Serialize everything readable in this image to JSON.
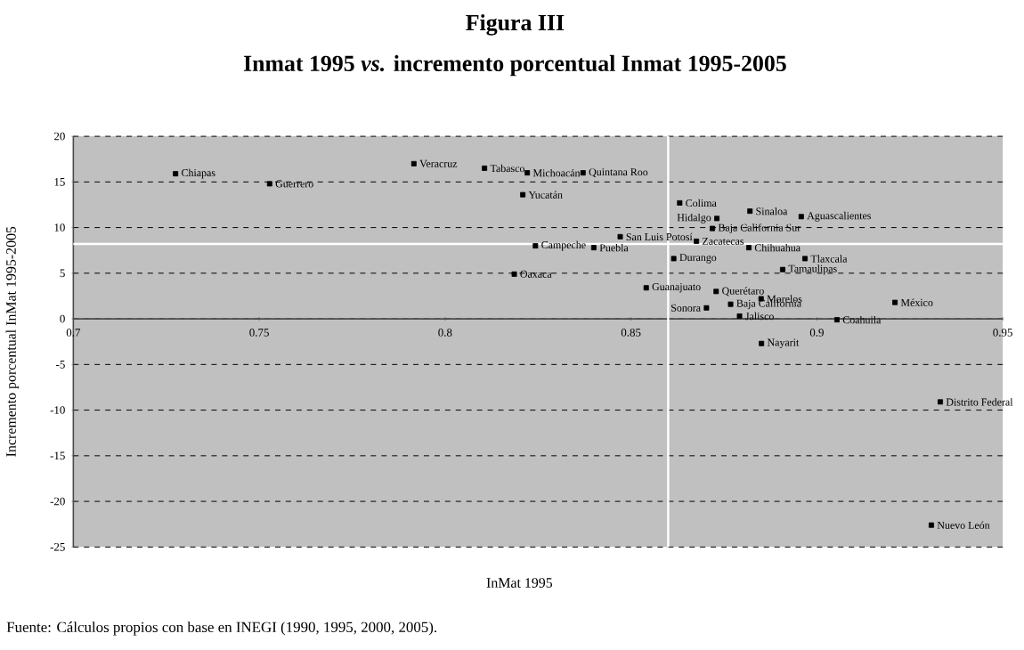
{
  "chart_data": {
    "type": "scatter",
    "title": "Figura III",
    "subtitle": "Inmat 1995 *vs.* incremento porcentual Inmat 1995-2005",
    "xlabel": "InMat 1995",
    "ylabel": "Incremento porcentual InMat 1995-2005",
    "xlim": [
      0.7,
      0.95
    ],
    "xticks": [
      0.7,
      0.75,
      0.8,
      0.85,
      0.9,
      0.95
    ],
    "ylim": [
      -25,
      20
    ],
    "yticks": [
      -25,
      -20,
      -15,
      -10,
      -5,
      0,
      5,
      10,
      15,
      20
    ],
    "grid": "y",
    "marker": "square",
    "ref_lines": [
      {
        "axis": "x",
        "value": 0.86,
        "color": "#ffffff"
      },
      {
        "axis": "y",
        "value": 8.2,
        "color": "#ffffff"
      }
    ],
    "series": [
      {
        "color": "#000000",
        "x": [
          0.7275,
          0.7528,
          0.7916,
          0.8106,
          0.8221,
          0.8371,
          0.8209,
          0.8631,
          0.882,
          0.8958,
          0.8731,
          0.8719,
          0.8243,
          0.84,
          0.8471,
          0.8817,
          0.8186,
          0.8615,
          0.8676,
          0.8968,
          0.8908,
          0.8541,
          0.8729,
          0.885,
          0.921,
          0.8703,
          0.8768,
          0.8792,
          0.9054,
          0.8851,
          0.9332,
          0.9308
        ],
        "values": [
          15.9,
          14.8,
          17.0,
          16.5,
          16.0,
          16.0,
          13.6,
          12.7,
          11.8,
          11.2,
          11.0,
          9.9,
          8.0,
          7.8,
          9.0,
          7.8,
          4.9,
          6.6,
          8.5,
          6.6,
          5.4,
          3.4,
          3.0,
          2.2,
          1.8,
          1.2,
          1.6,
          0.3,
          -0.1,
          -2.7,
          -9.1,
          -22.6
        ]
      }
    ],
    "annotations": [
      {
        "text": "Chiapas",
        "x": 0.7275,
        "y": 15.9
      },
      {
        "text": "Guerrero",
        "x": 0.7528,
        "y": 14.8
      },
      {
        "text": "Veracruz",
        "x": 0.7916,
        "y": 17.0
      },
      {
        "text": "Tabasco",
        "x": 0.8106,
        "y": 16.5
      },
      {
        "text": "Michoacán",
        "x": 0.8221,
        "y": 16.0
      },
      {
        "text": "Quintana Roo",
        "x": 0.8371,
        "y": 16.0
      },
      {
        "text": "Yucatán",
        "x": 0.8209,
        "y": 13.6
      },
      {
        "text": "Colima",
        "x": 0.8631,
        "y": 12.7
      },
      {
        "text": "Sinaloa",
        "x": 0.882,
        "y": 11.8
      },
      {
        "text": "Aguascalientes",
        "x": 0.8958,
        "y": 11.2
      },
      {
        "text": "Hidalgo",
        "x": 0.8731,
        "y": 11.0
      },
      {
        "text": "Baja California Sur",
        "x": 0.8719,
        "y": 9.9
      },
      {
        "text": "Campeche",
        "x": 0.8243,
        "y": 8.0
      },
      {
        "text": "Puebla",
        "x": 0.84,
        "y": 7.8
      },
      {
        "text": "San Luis Potosí",
        "x": 0.8471,
        "y": 9.0
      },
      {
        "text": "Chihuahua",
        "x": 0.8817,
        "y": 7.8
      },
      {
        "text": "Oaxaca",
        "x": 0.8186,
        "y": 4.9
      },
      {
        "text": "Durango",
        "x": 0.8615,
        "y": 6.6
      },
      {
        "text": "Zacatecas",
        "x": 0.8676,
        "y": 8.5
      },
      {
        "text": "Tlaxcala",
        "x": 0.8968,
        "y": 6.6
      },
      {
        "text": "Tamaulipas",
        "x": 0.8908,
        "y": 5.4
      },
      {
        "text": "Guanajuato",
        "x": 0.8541,
        "y": 3.4
      },
      {
        "text": "Querétaro",
        "x": 0.8729,
        "y": 3.0
      },
      {
        "text": "Morelos",
        "x": 0.885,
        "y": 2.2
      },
      {
        "text": "México",
        "x": 0.921,
        "y": 1.8
      },
      {
        "text": "Sonora",
        "x": 0.8703,
        "y": 1.2
      },
      {
        "text": "Baja California",
        "x": 0.8768,
        "y": 1.6
      },
      {
        "text": "Jalisco",
        "x": 0.8792,
        "y": 0.3
      },
      {
        "text": "Coahuila",
        "x": 0.9054,
        "y": -0.1
      },
      {
        "text": "Nayarit",
        "x": 0.8851,
        "y": -2.7
      },
      {
        "text": "Distrito Federal",
        "x": 0.9332,
        "y": -9.1
      },
      {
        "text": "Nuevo León",
        "x": 0.9308,
        "y": -22.6
      },
      "Fuente: Cálculos propios con base en INEGI (1990, 1995, 2000, 2005)."
    ]
  }
}
